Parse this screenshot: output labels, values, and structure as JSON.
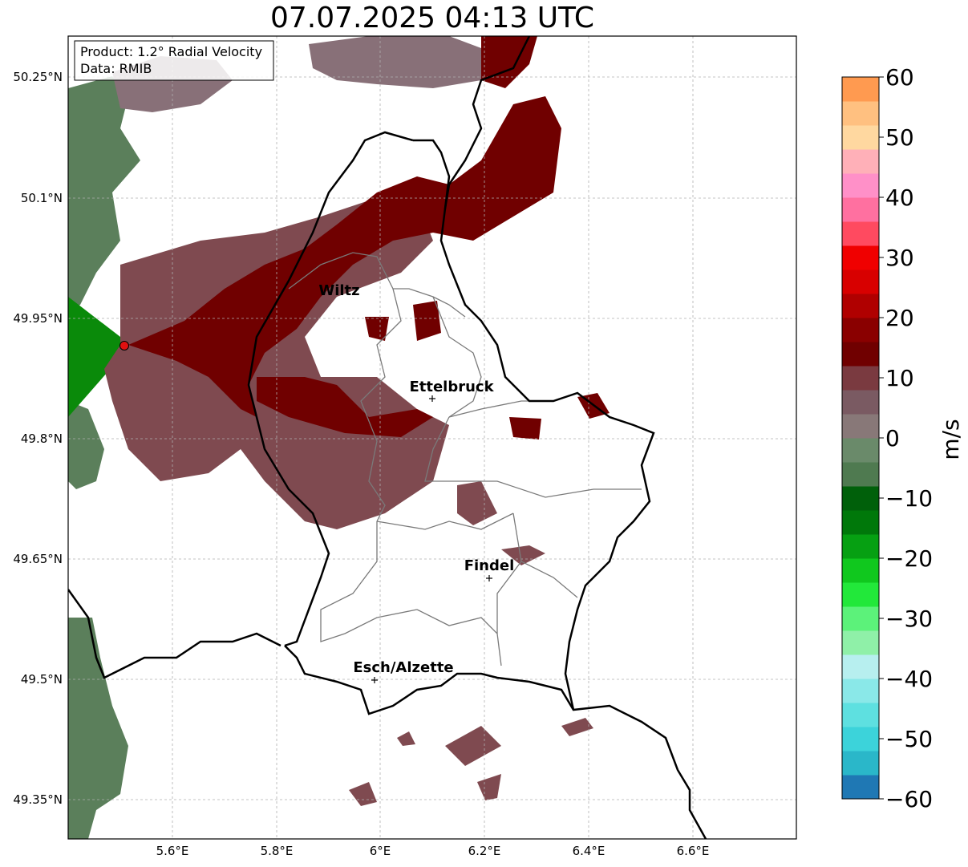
{
  "title": "07.07.2025 04:13 UTC",
  "info_box": {
    "product": "Product: 1.2° Radial Velocity",
    "data": "Data: RMIB"
  },
  "axes": {
    "lat_ticks": [
      "50.25°N",
      "50.1°N",
      "49.95°N",
      "49.8°N",
      "49.65°N",
      "49.5°N",
      "49.35°N"
    ],
    "lon_ticks": [
      "5.6°E",
      "5.8°E",
      "6°E",
      "6.2°E",
      "6.4°E",
      "6.6°E"
    ]
  },
  "cities": [
    {
      "name": "Wiltz"
    },
    {
      "name": "Ettelbruck"
    },
    {
      "name": "Findel"
    },
    {
      "name": "Esch/Alzette"
    }
  ],
  "colorbar": {
    "unit": "m/s",
    "ticks": [
      "60",
      "50",
      "40",
      "30",
      "20",
      "10",
      "0",
      "−10",
      "−20",
      "−30",
      "−40",
      "−50",
      "−60"
    ],
    "range": [
      -60,
      60
    ],
    "palette": [
      "#1f78b4",
      "#2ab7c9",
      "#3cd3da",
      "#5ee0e0",
      "#8ae8e8",
      "#b7efef",
      "#8ff0a8",
      "#5cf27a",
      "#22e83a",
      "#10c81e",
      "#06a012",
      "#00780a",
      "#00600a",
      "#4f7a50",
      "#6a8a6a",
      "#887878",
      "#7a5a62",
      "#7a3a40",
      "#700000",
      "#8a0000",
      "#b00000",
      "#d80000",
      "#f00000",
      "#ff4a60",
      "#ff70a0",
      "#ff90c8",
      "#ffb0b8",
      "#ffd8a0",
      "#ffc080",
      "#ff9a50"
    ]
  },
  "colors": {
    "inbound_strong": "#700000",
    "near_zero_pink": "#7f4a50",
    "near_zero_green": "#5b7f5b",
    "outbound_green": "#0a8a0a",
    "radar_marker": "#e01010"
  }
}
